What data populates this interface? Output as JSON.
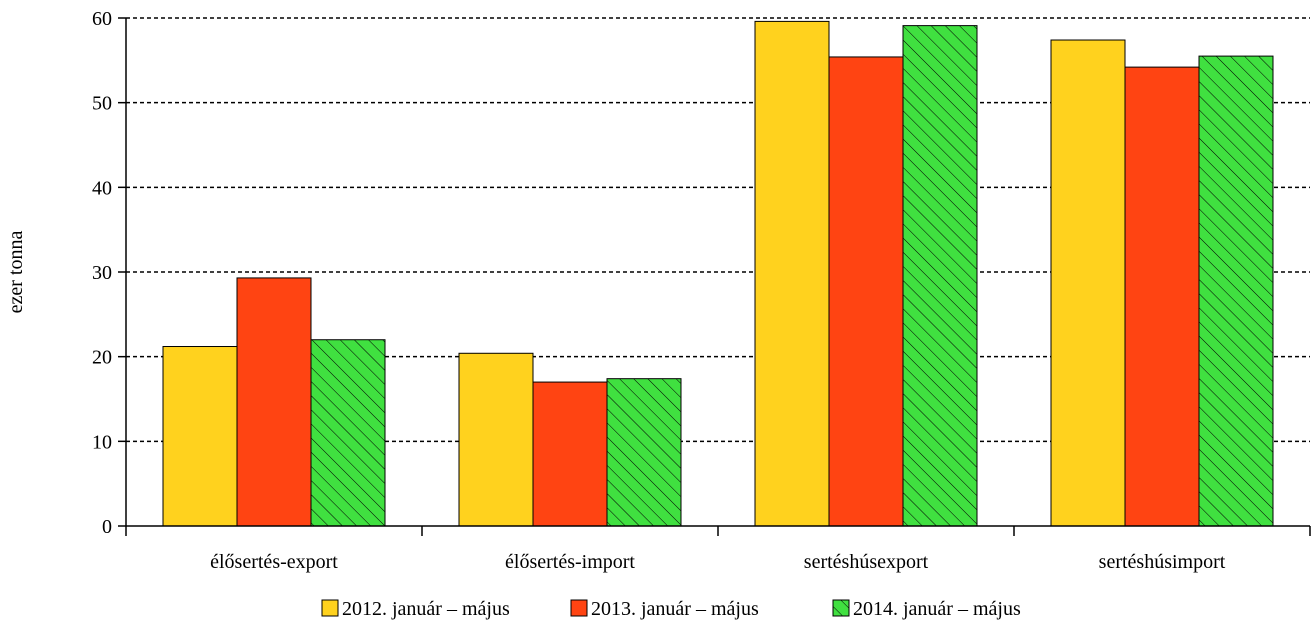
{
  "chart_data": {
    "type": "bar",
    "title": "",
    "xlabel": "",
    "ylabel": "ezer tonna",
    "ylim": [
      0,
      60
    ],
    "yticks": [
      0,
      10,
      20,
      30,
      40,
      50,
      60
    ],
    "grid": true,
    "legend_position": "bottom",
    "categories": [
      "élősertés-export",
      "élősertés-import",
      "sertéshúsexport",
      "sertéshúsimport"
    ],
    "series": [
      {
        "name": "2012. január – május",
        "values": [
          21.2,
          20.4,
          59.6,
          57.4
        ],
        "color": "#FFD21E",
        "pattern": "solid"
      },
      {
        "name": "2013. január – május",
        "values": [
          29.3,
          17.0,
          55.4,
          54.2
        ],
        "color": "#FF4412",
        "pattern": "solid"
      },
      {
        "name": "2014. január – május",
        "values": [
          22.0,
          17.4,
          59.1,
          55.5
        ],
        "color": "#40E040",
        "pattern": "hatch"
      }
    ]
  }
}
